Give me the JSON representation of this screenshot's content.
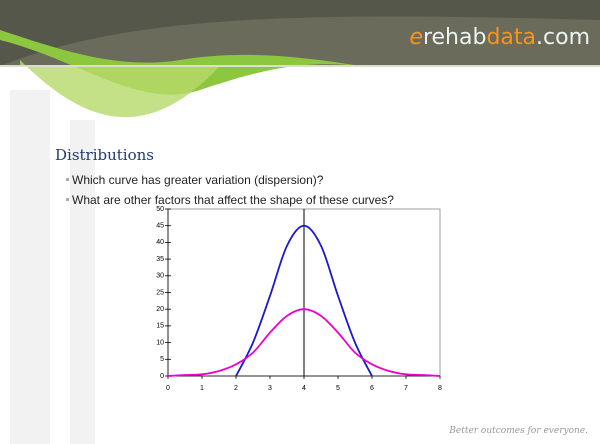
{
  "logo": {
    "parts": [
      "e",
      "rehab",
      "data",
      ".com"
    ]
  },
  "title": "Distributions",
  "bullets": [
    "Which curve has greater variation (dispersion)?",
    "What are other factors that affect the shape of these curves?"
  ],
  "footer": "Better outcomes for everyone.",
  "chart_data": {
    "type": "line",
    "xlim": [
      0,
      8
    ],
    "xticks": [
      0,
      1,
      2,
      3,
      4,
      5,
      6,
      7,
      8
    ],
    "ylim": [
      0,
      50
    ],
    "yticks": [
      0,
      5,
      10,
      15,
      20,
      25,
      30,
      35,
      40,
      45,
      50
    ],
    "vline": 4,
    "series": [
      {
        "color": "#1a1acc",
        "x": [
          2,
          2.5,
          3,
          3.5,
          4,
          4.5,
          5,
          5.5,
          6
        ],
        "values": [
          0,
          10,
          24,
          39,
          45,
          39,
          24,
          10,
          0
        ]
      },
      {
        "color": "#ee00cc",
        "x": [
          0,
          0.5,
          1,
          1.5,
          2,
          2.5,
          3,
          3.5,
          4,
          4.5,
          5,
          5.5,
          6,
          6.5,
          7,
          7.5,
          8
        ],
        "values": [
          0,
          0.3,
          0.5,
          1.5,
          3.5,
          7,
          13,
          18,
          20,
          18,
          13,
          7,
          3.5,
          1.5,
          0.5,
          0.3,
          0
        ]
      }
    ]
  }
}
